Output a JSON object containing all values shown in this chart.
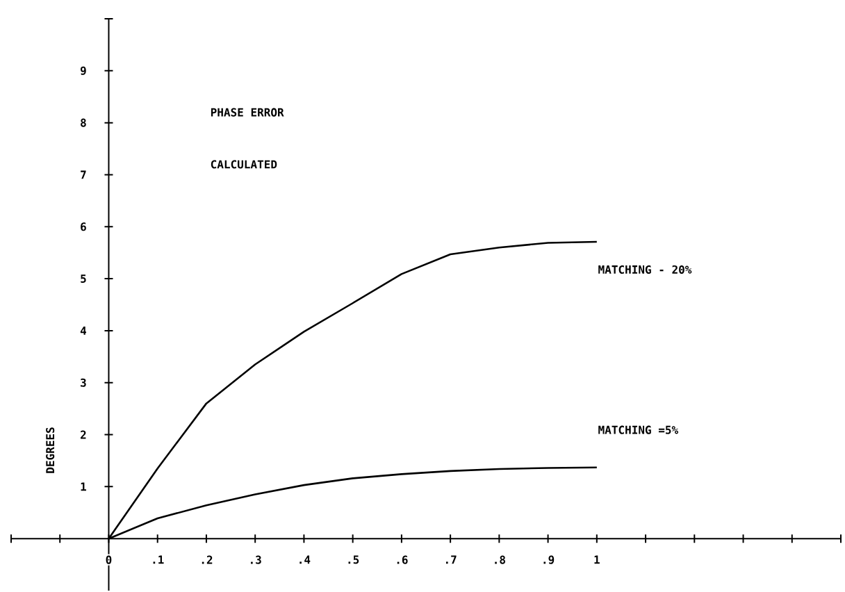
{
  "chart_data": {
    "type": "line",
    "ylabel": "DEGREES",
    "annotations": [
      "PHASE ERROR",
      "CALCULATED"
    ],
    "x": [
      0,
      0.1,
      0.2,
      0.3,
      0.4,
      0.5,
      0.6,
      0.7,
      0.8,
      0.9,
      1.0
    ],
    "series": [
      {
        "name": "MATCHING - 20%",
        "color": "#000000",
        "values": [
          0,
          1.35,
          2.6,
          3.35,
          3.98,
          4.53,
          5.09,
          5.47,
          5.6,
          5.69,
          5.71
        ]
      },
      {
        "name": "MATCHING =5%",
        "color": "#000000",
        "values": [
          0,
          0.39,
          0.64,
          0.85,
          1.03,
          1.16,
          1.24,
          1.3,
          1.34,
          1.36,
          1.37
        ]
      }
    ],
    "xlim": [
      -0.2,
      1.5
    ],
    "ylim": [
      -1,
      10
    ],
    "xticks": [
      {
        "value": -0.2,
        "label": null
      },
      {
        "value": -0.1,
        "label": null
      },
      0,
      {
        "value": 0.1,
        "label": ".1"
      },
      {
        "value": 0.2,
        "label": ".2"
      },
      {
        "value": 0.3,
        "label": ".3"
      },
      {
        "value": 0.4,
        "label": ".4"
      },
      {
        "value": 0.5,
        "label": ".5"
      },
      {
        "value": 0.6,
        "label": ".6"
      },
      {
        "value": 0.7,
        "label": ".7"
      },
      {
        "value": 0.8,
        "label": ".8"
      },
      {
        "value": 0.9,
        "label": ".9"
      },
      1,
      {
        "value": 1.1,
        "label": null
      },
      {
        "value": 1.2,
        "label": null
      },
      {
        "value": 1.3,
        "label": null
      },
      {
        "value": 1.4,
        "label": null
      },
      {
        "value": 1.5,
        "label": null
      }
    ],
    "yticks": [
      1,
      2,
      3,
      4,
      5,
      6,
      7,
      8,
      9,
      {
        "value": 10,
        "label": null
      }
    ],
    "grid": false,
    "legend": false,
    "marker": "none",
    "line_style": "solid"
  }
}
